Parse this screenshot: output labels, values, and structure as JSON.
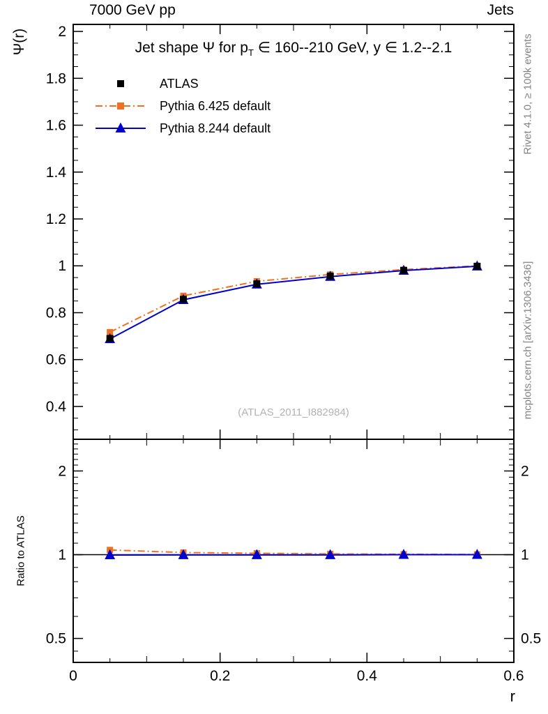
{
  "header": {
    "left": "7000 GeV pp",
    "right": "Jets"
  },
  "titles": {
    "pre": "Jet shape Ψ for p",
    "sub": "T",
    "post": " ∈ 160--210 GeV, y ∈ 1.2--2.1"
  },
  "watermark": "(ATLAS_2011_I882984)",
  "side_notes": {
    "rivet": "Rivet 4.1.0, ≥ 100k events",
    "mcplots": "mcplots.cern.ch [arXiv:1306.3436]"
  },
  "chart_data": {
    "type": "line",
    "title": "Jet shape Ψ for p_T ∈ 160--210 GeV, y ∈ 1.2--2.1",
    "xlabel": "r",
    "ylabel": "Ψ(r)",
    "ratio_ylabel": "Ratio to ATLAS",
    "legend_position": "top-left",
    "grid": false,
    "xlim": [
      0,
      0.6
    ],
    "main_ylim": [
      0.26,
      2.03
    ],
    "ratio_ylim": [
      0.41,
      2.6
    ],
    "ratio_scale": "log",
    "x": [
      0.05,
      0.15,
      0.25,
      0.35,
      0.45,
      0.55
    ],
    "xticks": {
      "values": [
        0,
        0.2,
        0.4,
        0.6
      ],
      "labels": [
        "0",
        "0.2",
        "0.4",
        "0.6"
      ]
    },
    "main_yticks": {
      "values": [
        0.4,
        0.6,
        0.8,
        1,
        1.2,
        1.4,
        1.6,
        1.8,
        2
      ],
      "labels": [
        "0.4",
        "0.6",
        "0.8",
        "1",
        "1.2",
        "1.4",
        "1.6",
        "1.8",
        "2"
      ]
    },
    "ratio_yticks": {
      "values": [
        0.5,
        1,
        2
      ],
      "labels": [
        "0.5",
        "1",
        "2"
      ]
    },
    "series": [
      {
        "name": "ATLAS",
        "color": "#000000",
        "marker": "square",
        "line": "none",
        "values": [
          0.69,
          0.857,
          0.923,
          0.956,
          0.98,
          0.998
        ],
        "ratio": [
          1,
          1,
          1,
          1,
          1,
          1
        ]
      },
      {
        "name": "Pythia 6.425 default",
        "color": "#f07020",
        "marker": "square",
        "line": "dashdot",
        "values": [
          0.717,
          0.872,
          0.934,
          0.963,
          0.984,
          1.0
        ],
        "ratio": [
          1.04,
          1.018,
          1.012,
          1.007,
          1.004,
          1.002
        ]
      },
      {
        "name": "Pythia 8.244 default",
        "color": "#0000cd",
        "marker": "triangle",
        "line": "solid",
        "values": [
          0.688,
          0.855,
          0.921,
          0.954,
          0.98,
          0.998
        ],
        "ratio": [
          0.997,
          0.998,
          0.998,
          0.998,
          1.0,
          1.0
        ]
      }
    ]
  }
}
